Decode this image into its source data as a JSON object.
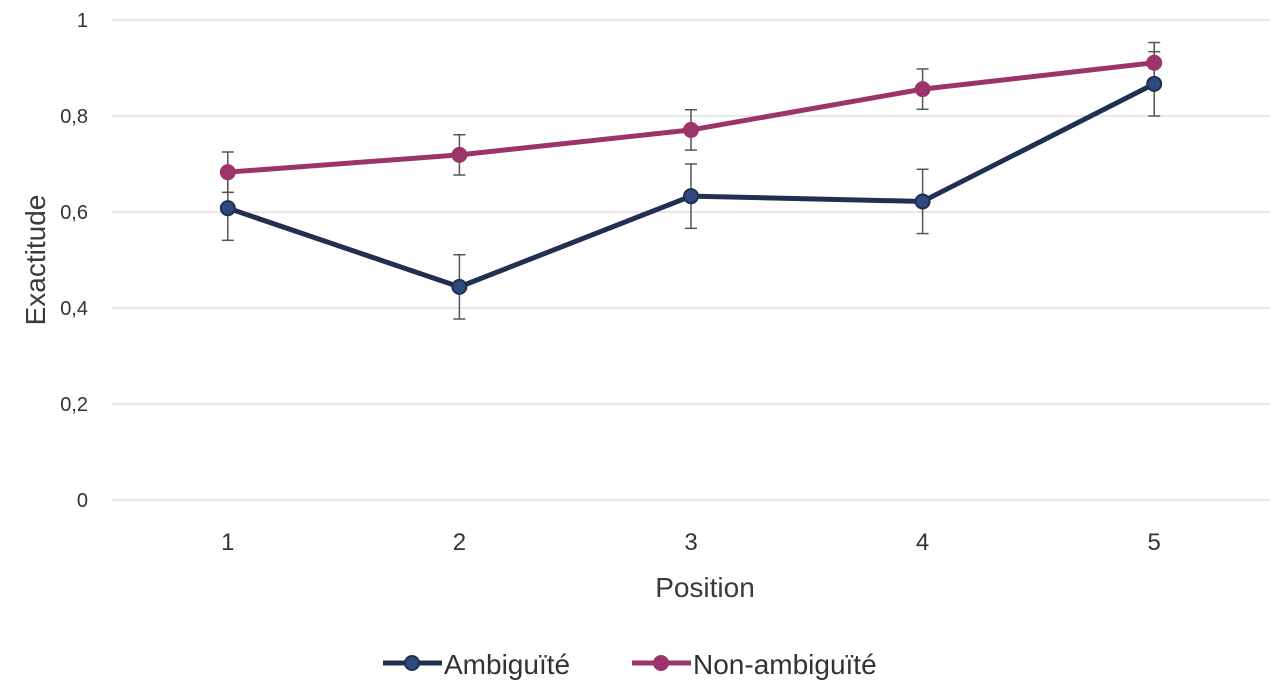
{
  "chart_data": {
    "type": "line",
    "title": "",
    "xlabel": "Position",
    "ylabel": "Exactitude",
    "categories": [
      "1",
      "2",
      "3",
      "4",
      "5"
    ],
    "ylim": [
      0,
      1
    ],
    "yticks": [
      0,
      0.2,
      0.4,
      0.6,
      0.8,
      1
    ],
    "ytick_labels": [
      "0",
      "0,2",
      "0,4",
      "0,6",
      "0,8",
      "1"
    ],
    "grid": true,
    "legend_position": "bottom",
    "series": [
      {
        "name": "Ambiguïté",
        "color": "#1f3050",
        "marker_fill": "#2e4a7e",
        "values": [
          0.608,
          0.444,
          0.633,
          0.622,
          0.867
        ],
        "error": [
          0.067,
          0.067,
          0.067,
          0.067,
          0.067
        ]
      },
      {
        "name": "Non-ambiguïté",
        "color": "#9b3468",
        "marker_fill": "#9b3468",
        "values": [
          0.683,
          0.719,
          0.771,
          0.856,
          0.911
        ],
        "error": [
          0.042,
          0.042,
          0.042,
          0.042,
          0.042
        ]
      }
    ]
  }
}
